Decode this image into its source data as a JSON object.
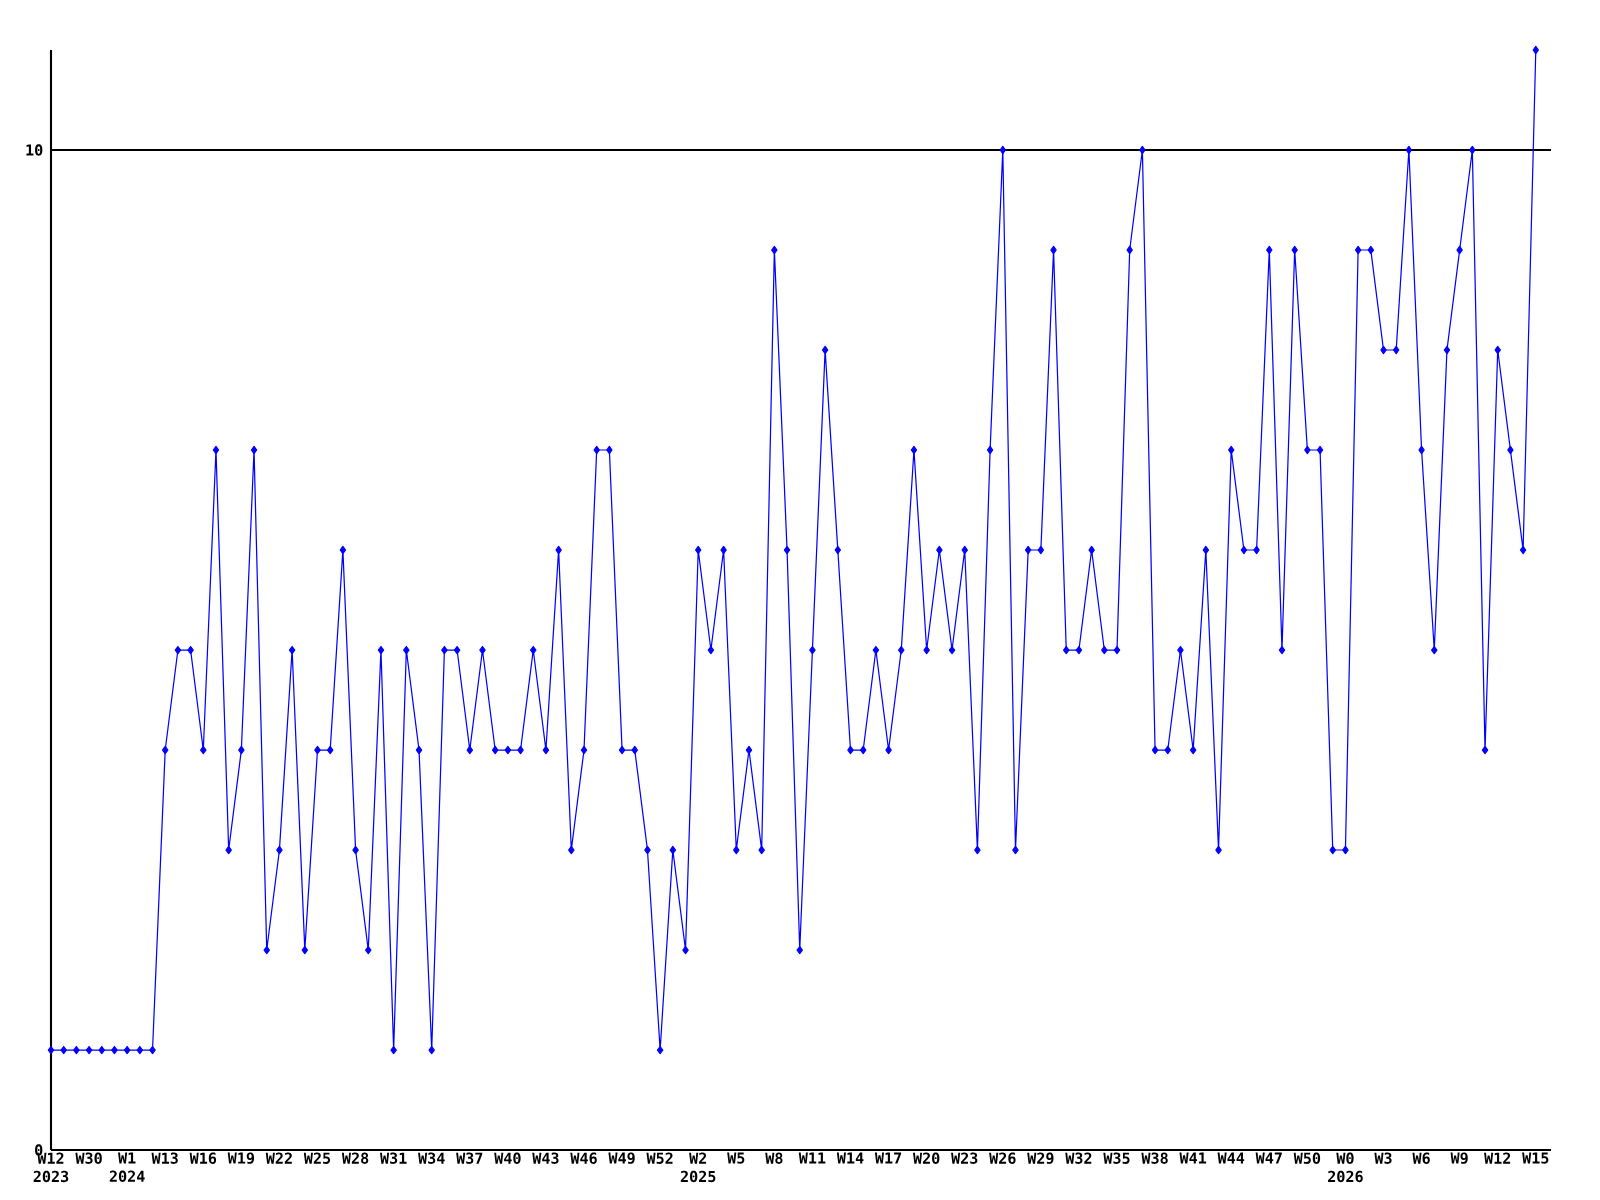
{
  "chart_data": {
    "type": "line",
    "categories": [
      "W12 2023",
      null,
      null,
      "W30",
      null,
      null,
      "W1 2024",
      null,
      null,
      "W13",
      null,
      null,
      "W16",
      null,
      null,
      "W19",
      null,
      null,
      "W22",
      null,
      null,
      "W25",
      null,
      null,
      "W28",
      null,
      null,
      "W31",
      null,
      null,
      "W34",
      null,
      null,
      "W37",
      null,
      null,
      "W40",
      null,
      null,
      "W43",
      null,
      null,
      "W46",
      null,
      null,
      "W49",
      null,
      null,
      "W52",
      null,
      null,
      "W2 2025",
      null,
      null,
      "W5",
      null,
      null,
      "W8",
      null,
      null,
      "W11",
      null,
      null,
      "W14",
      null,
      null,
      "W17",
      null,
      null,
      "W20",
      null,
      null,
      "W23",
      null,
      null,
      "W26",
      null,
      null,
      "W29",
      null,
      null,
      "W32",
      null,
      null,
      "W35",
      null,
      null,
      "W38",
      null,
      null,
      "W41",
      null,
      null,
      "W44",
      null,
      null,
      "W47",
      null,
      null,
      "W50",
      null,
      null,
      "W0 2026",
      null,
      null,
      "W3",
      null,
      null,
      "W6",
      null,
      null,
      "W9",
      null,
      null,
      "W12",
      null,
      null,
      "W15"
    ],
    "values": [
      1,
      1,
      1,
      1,
      1,
      1,
      1,
      1,
      1,
      4,
      5,
      5,
      4,
      7,
      3,
      4,
      7,
      2,
      3,
      5,
      2,
      4,
      4,
      6,
      3,
      2,
      5,
      1,
      5,
      4,
      1,
      5,
      5,
      4,
      5,
      4,
      4,
      4,
      5,
      4,
      6,
      3,
      4,
      7,
      7,
      4,
      4,
      3,
      1,
      3,
      2,
      6,
      5,
      6,
      3,
      4,
      3,
      9,
      6,
      2,
      5,
      8,
      6,
      4,
      4,
      5,
      4,
      5,
      7,
      5,
      6,
      5,
      6,
      3,
      7,
      10,
      3,
      6,
      6,
      9,
      5,
      5,
      6,
      5,
      5,
      9,
      10,
      4,
      4,
      5,
      4,
      6,
      3,
      7,
      6,
      6,
      9,
      5,
      9,
      7,
      7,
      3,
      3,
      9,
      9,
      8,
      8,
      10,
      7,
      5,
      8,
      9,
      10,
      4,
      8,
      7,
      6,
      11
    ],
    "color": "#0000ff",
    "marker": "diamond",
    "ylim": [
      0,
      11
    ],
    "yticks": [
      0,
      10
    ],
    "grid": "y"
  }
}
